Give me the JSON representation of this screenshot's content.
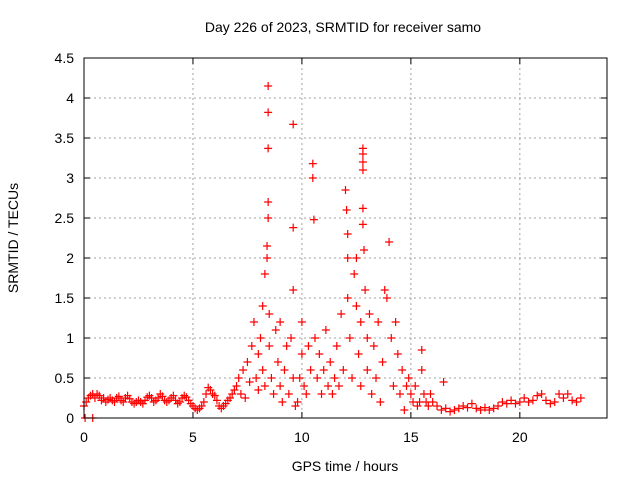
{
  "chart_data": {
    "type": "scatter",
    "title": "Day 226 of 2023, SRMTID for receiver samo",
    "xlabel": "GPS time / hours",
    "ylabel": "SRMTID / TECUs",
    "xlim": [
      0,
      24
    ],
    "ylim": [
      0,
      4.5
    ],
    "xticks": [
      0,
      5,
      10,
      15,
      20
    ],
    "xtick_labels": [
      "0",
      "5",
      "10",
      "15",
      "20"
    ],
    "yticks": [
      0,
      0.5,
      1,
      1.5,
      2,
      2.5,
      3,
      3.5,
      4,
      4.5
    ],
    "ytick_labels": [
      "0",
      "0.5",
      "1",
      "1.5",
      "2",
      "2.5",
      "3",
      "3.5",
      "4",
      "4.5"
    ],
    "grid": true,
    "marker": "plus",
    "series": [
      {
        "name": "SRMTID",
        "color": "#ff0000",
        "points": [
          [
            0.05,
            0
          ],
          [
            0.4,
            0
          ],
          [
            0,
            0.15
          ],
          [
            0.1,
            0.2
          ],
          [
            0.2,
            0.25
          ],
          [
            0.3,
            0.28
          ],
          [
            0.4,
            0.3
          ],
          [
            0.5,
            0.25
          ],
          [
            0.6,
            0.3
          ],
          [
            0.7,
            0.28
          ],
          [
            0.8,
            0.22
          ],
          [
            0.9,
            0.25
          ],
          [
            1,
            0.2
          ],
          [
            1.1,
            0.23
          ],
          [
            1.2,
            0.25
          ],
          [
            1.3,
            0.22
          ],
          [
            1.4,
            0.2
          ],
          [
            1.5,
            0.25
          ],
          [
            1.6,
            0.27
          ],
          [
            1.7,
            0.22
          ],
          [
            1.8,
            0.2
          ],
          [
            1.9,
            0.25
          ],
          [
            2,
            0.28
          ],
          [
            2.1,
            0.24
          ],
          [
            2.2,
            0.2
          ],
          [
            2.3,
            0.18
          ],
          [
            2.4,
            0.2
          ],
          [
            2.5,
            0.22
          ],
          [
            2.6,
            0.2
          ],
          [
            2.7,
            0.18
          ],
          [
            2.8,
            0.22
          ],
          [
            2.9,
            0.26
          ],
          [
            3,
            0.28
          ],
          [
            3.1,
            0.25
          ],
          [
            3.2,
            0.2
          ],
          [
            3.3,
            0.22
          ],
          [
            3.4,
            0.25
          ],
          [
            3.5,
            0.3
          ],
          [
            3.6,
            0.27
          ],
          [
            3.7,
            0.22
          ],
          [
            3.8,
            0.2
          ],
          [
            3.9,
            0.22
          ],
          [
            4,
            0.25
          ],
          [
            4.1,
            0.28
          ],
          [
            4.2,
            0.22
          ],
          [
            4.3,
            0.18
          ],
          [
            4.4,
            0.2
          ],
          [
            4.5,
            0.25
          ],
          [
            4.6,
            0.28
          ],
          [
            4.7,
            0.26
          ],
          [
            4.8,
            0.22
          ],
          [
            4.9,
            0.18
          ],
          [
            5,
            0.15
          ],
          [
            5.1,
            0.12
          ],
          [
            5.2,
            0.1
          ],
          [
            5.3,
            0.12
          ],
          [
            5.4,
            0.15
          ],
          [
            5.5,
            0.2
          ],
          [
            5.6,
            0.3
          ],
          [
            5.7,
            0.38
          ],
          [
            5.8,
            0.35
          ],
          [
            5.9,
            0.3
          ],
          [
            6,
            0.28
          ],
          [
            6.1,
            0.22
          ],
          [
            6.2,
            0.15
          ],
          [
            6.3,
            0.12
          ],
          [
            6.4,
            0.15
          ],
          [
            6.5,
            0.18
          ],
          [
            6.6,
            0.22
          ],
          [
            6.7,
            0.25
          ],
          [
            6.8,
            0.3
          ],
          [
            6.9,
            0.35
          ],
          [
            7,
            0.4
          ],
          [
            7.1,
            0.5
          ],
          [
            7.2,
            0.3
          ],
          [
            7.3,
            0.6
          ],
          [
            7.4,
            0.25
          ],
          [
            7.5,
            0.7
          ],
          [
            7.6,
            0.45
          ],
          [
            7.7,
            0.9
          ],
          [
            7.8,
            1.2
          ],
          [
            7.9,
            0.5
          ],
          [
            8,
            0.35
          ],
          [
            8,
            0.8
          ],
          [
            8.1,
            1.0
          ],
          [
            8.2,
            0.6
          ],
          [
            8.2,
            1.4
          ],
          [
            8.3,
            1.8
          ],
          [
            8.3,
            0.4
          ],
          [
            8.4,
            2.0
          ],
          [
            8.4,
            2.15
          ],
          [
            8.45,
            2.5
          ],
          [
            8.45,
            2.7
          ],
          [
            8.45,
            3.37
          ],
          [
            8.45,
            3.82
          ],
          [
            8.45,
            4.15
          ],
          [
            8.5,
            1.3
          ],
          [
            8.5,
            0.9
          ],
          [
            8.6,
            0.5
          ],
          [
            8.7,
            0.3
          ],
          [
            8.8,
            1.1
          ],
          [
            8.9,
            0.7
          ],
          [
            9,
            0.4
          ],
          [
            9,
            1.2
          ],
          [
            9.1,
            0.2
          ],
          [
            9.2,
            0.6
          ],
          [
            9.3,
            0.9
          ],
          [
            9.4,
            0.3
          ],
          [
            9.5,
            1.0
          ],
          [
            9.6,
            3.67
          ],
          [
            9.6,
            2.38
          ],
          [
            9.6,
            1.6
          ],
          [
            9.6,
            0.5
          ],
          [
            9.7,
            0.15
          ],
          [
            9.8,
            0.2
          ],
          [
            9.9,
            0.5
          ],
          [
            10,
            0.8
          ],
          [
            10,
            1.2
          ],
          [
            10.1,
            0.4
          ],
          [
            10.2,
            0.3
          ],
          [
            10.3,
            0.9
          ],
          [
            10.4,
            0.6
          ],
          [
            10.5,
            3.18
          ],
          [
            10.5,
            3.0
          ],
          [
            10.55,
            2.48
          ],
          [
            10.6,
            1.0
          ],
          [
            10.7,
            0.5
          ],
          [
            10.8,
            0.8
          ],
          [
            10.9,
            0.3
          ],
          [
            11,
            0.6
          ],
          [
            11.1,
            1.1
          ],
          [
            11.2,
            0.4
          ],
          [
            11.3,
            0.7
          ],
          [
            11.4,
            0.3
          ],
          [
            11.5,
            0.5
          ],
          [
            11.6,
            0.9
          ],
          [
            11.7,
            0.4
          ],
          [
            11.8,
            1.3
          ],
          [
            11.9,
            0.6
          ],
          [
            12,
            2.85
          ],
          [
            12.05,
            2.6
          ],
          [
            12.1,
            2.3
          ],
          [
            12.1,
            2.0
          ],
          [
            12.1,
            1.5
          ],
          [
            12.2,
            1.0
          ],
          [
            12.3,
            0.5
          ],
          [
            12.4,
            1.8
          ],
          [
            12.5,
            2.0
          ],
          [
            12.5,
            1.4
          ],
          [
            12.6,
            0.8
          ],
          [
            12.7,
            1.2
          ],
          [
            12.7,
            0.4
          ],
          [
            12.8,
            3.37
          ],
          [
            12.8,
            3.3
          ],
          [
            12.8,
            3.2
          ],
          [
            12.8,
            3.1
          ],
          [
            12.8,
            2.62
          ],
          [
            12.8,
            2.42
          ],
          [
            12.85,
            2.1
          ],
          [
            12.9,
            1.6
          ],
          [
            13,
            1.0
          ],
          [
            13,
            0.6
          ],
          [
            13.1,
            1.3
          ],
          [
            13.2,
            0.3
          ],
          [
            13.3,
            0.9
          ],
          [
            13.4,
            0.5
          ],
          [
            13.5,
            1.2
          ],
          [
            13.6,
            0.2
          ],
          [
            13.7,
            0.7
          ],
          [
            13.8,
            1.6
          ],
          [
            13.9,
            1.5
          ],
          [
            14,
            2.2
          ],
          [
            14.1,
            1.0
          ],
          [
            14.2,
            0.4
          ],
          [
            14.3,
            1.2
          ],
          [
            14.4,
            0.8
          ],
          [
            14.5,
            0.3
          ],
          [
            14.6,
            0.6
          ],
          [
            14.7,
            0.1
          ],
          [
            14.8,
            0.4
          ],
          [
            14.9,
            0.5
          ],
          [
            15,
            0.3
          ],
          [
            15.1,
            0.2
          ],
          [
            15.2,
            0.4
          ],
          [
            15.3,
            0.15
          ],
          [
            15.4,
            0.2
          ],
          [
            15.5,
            0.85
          ],
          [
            15.5,
            0.6
          ],
          [
            15.6,
            0.3
          ],
          [
            15.7,
            0.2
          ],
          [
            15.8,
            0.15
          ],
          [
            15.9,
            0.3
          ],
          [
            16,
            0.2
          ],
          [
            16.2,
            0.15
          ],
          [
            16.4,
            0.1
          ],
          [
            16.5,
            0.45
          ],
          [
            16.6,
            0.12
          ],
          [
            16.8,
            0.08
          ],
          [
            17,
            0.1
          ],
          [
            17.2,
            0.12
          ],
          [
            17.4,
            0.15
          ],
          [
            17.6,
            0.13
          ],
          [
            17.8,
            0.18
          ],
          [
            18,
            0.12
          ],
          [
            18.2,
            0.1
          ],
          [
            18.4,
            0.13
          ],
          [
            18.6,
            0.1
          ],
          [
            18.8,
            0.12
          ],
          [
            19,
            0.15
          ],
          [
            19.2,
            0.2
          ],
          [
            19.4,
            0.18
          ],
          [
            19.6,
            0.22
          ],
          [
            19.8,
            0.18
          ],
          [
            20,
            0.2
          ],
          [
            20.2,
            0.25
          ],
          [
            20.4,
            0.2
          ],
          [
            20.6,
            0.22
          ],
          [
            20.8,
            0.28
          ],
          [
            21,
            0.3
          ],
          [
            21.2,
            0.22
          ],
          [
            21.4,
            0.18
          ],
          [
            21.6,
            0.2
          ],
          [
            21.8,
            0.3
          ],
          [
            22,
            0.25
          ],
          [
            22.2,
            0.3
          ],
          [
            22.4,
            0.22
          ],
          [
            22.6,
            0.2
          ],
          [
            22.8,
            0.25
          ]
        ]
      }
    ]
  }
}
